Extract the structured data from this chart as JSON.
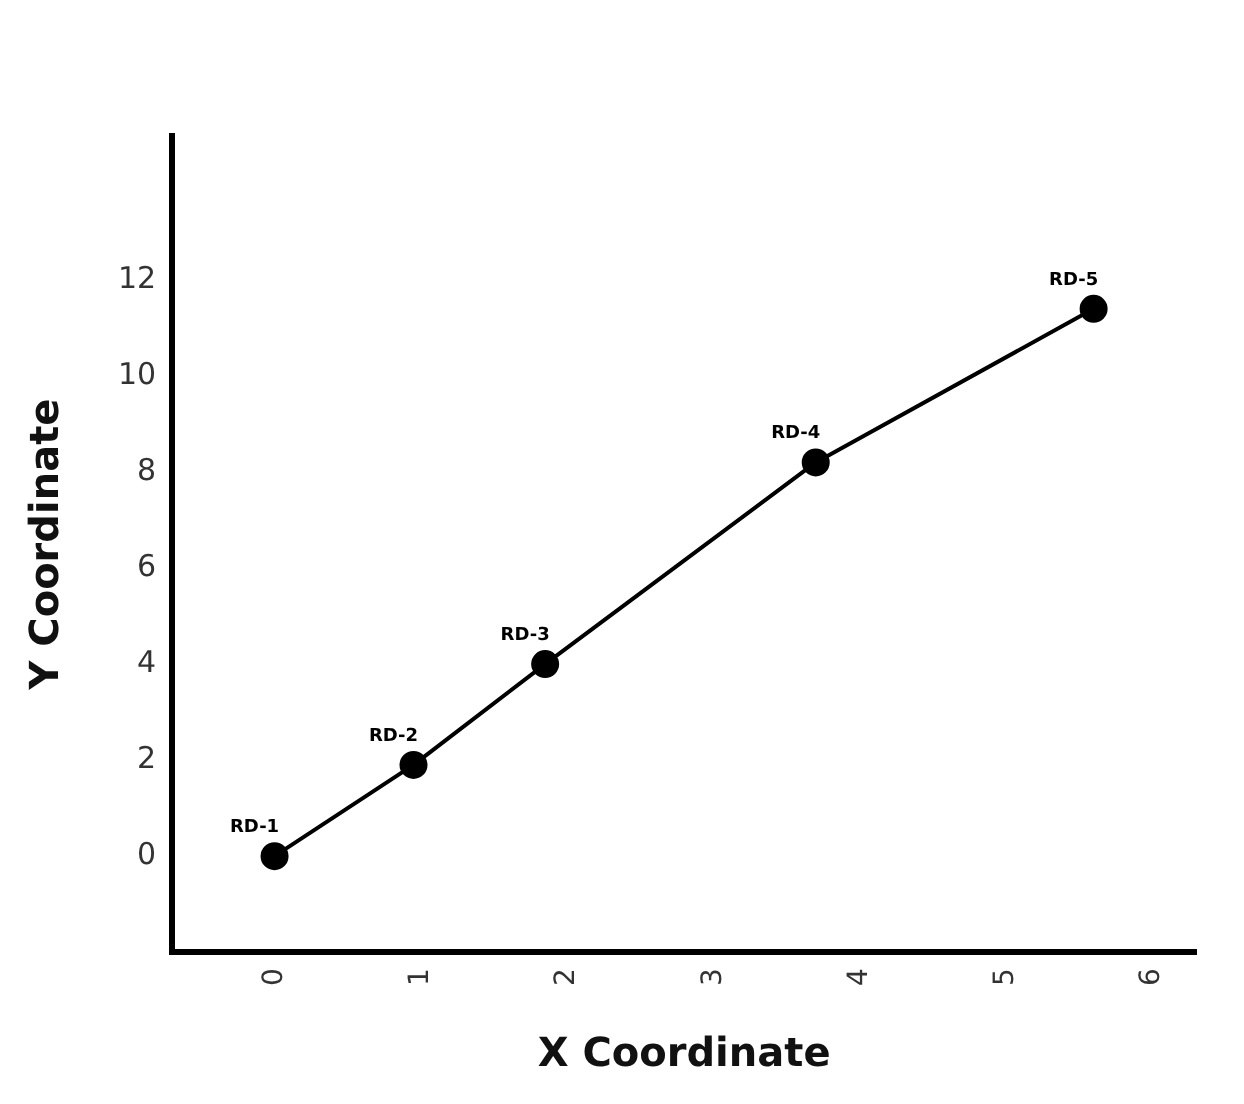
{
  "chart_data": {
    "type": "line",
    "xlabel": "X Coordinate",
    "ylabel": "Y Coordinate",
    "x": [
      0,
      0.95,
      1.85,
      3.7,
      5.6
    ],
    "series": [
      {
        "color": "#000000",
        "values": [
          0,
          1.9,
          4,
          8.2,
          11.4
        ]
      }
    ],
    "xlim": [
      -0.7,
      6.3
    ],
    "xticks": [
      0,
      1,
      2,
      3,
      4,
      5,
      6
    ],
    "ylim": [
      -2,
      15
    ],
    "yticks": [
      0,
      2,
      4,
      6,
      8,
      10,
      12
    ],
    "grid": false,
    "legend": false,
    "marker": "circle",
    "line_style": "solid",
    "annotations": [
      {
        "text": "RD-1",
        "x": 0,
        "y": 0
      },
      {
        "text": "RD-2",
        "x": 0.95,
        "y": 1.9
      },
      {
        "text": "RD-3",
        "x": 1.85,
        "y": 4
      },
      {
        "text": "RD-4",
        "x": 3.7,
        "y": 8.2
      },
      {
        "text": "RD-5",
        "x": 5.6,
        "y": 11.4
      }
    ]
  }
}
